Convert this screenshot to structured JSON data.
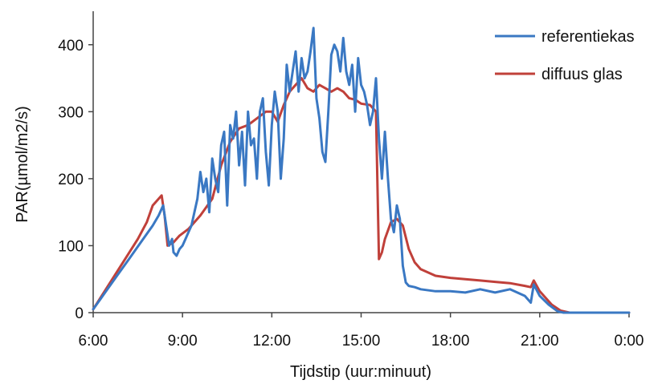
{
  "chart_data": {
    "type": "line",
    "title": "",
    "xlabel": "Tijdstip (uur:minuut)",
    "ylabel": "PAR(µmol/m2/s)",
    "x_unit": "hours",
    "xlim": [
      6,
      24
    ],
    "ylim": [
      0,
      450
    ],
    "x_ticks": [
      6,
      9,
      12,
      15,
      18,
      21,
      24
    ],
    "x_tick_labels": [
      "6:00",
      "9:00",
      "12:00",
      "15:00",
      "18:00",
      "21:00",
      "0:00"
    ],
    "y_ticks": [
      0,
      100,
      200,
      300,
      400
    ],
    "y_tick_labels": [
      "0",
      "100",
      "200",
      "300",
      "400"
    ],
    "grid": false,
    "legend_position": "top-right",
    "series": [
      {
        "name": "referentiekas",
        "color": "#3a78c3",
        "x": [
          6.0,
          6.4,
          6.8,
          7.2,
          7.6,
          8.0,
          8.2,
          8.35,
          8.45,
          8.55,
          8.65,
          8.7,
          8.8,
          8.9,
          9.0,
          9.1,
          9.2,
          9.3,
          9.4,
          9.5,
          9.6,
          9.7,
          9.8,
          9.9,
          10.0,
          10.1,
          10.2,
          10.3,
          10.4,
          10.5,
          10.6,
          10.7,
          10.8,
          10.9,
          11.0,
          11.1,
          11.2,
          11.3,
          11.4,
          11.5,
          11.6,
          11.7,
          11.8,
          11.9,
          12.0,
          12.1,
          12.2,
          12.3,
          12.4,
          12.5,
          12.6,
          12.7,
          12.8,
          12.9,
          13.0,
          13.1,
          13.2,
          13.3,
          13.4,
          13.5,
          13.6,
          13.7,
          13.8,
          13.9,
          14.0,
          14.1,
          14.2,
          14.3,
          14.4,
          14.5,
          14.6,
          14.7,
          14.8,
          14.9,
          15.0,
          15.1,
          15.2,
          15.3,
          15.4,
          15.5,
          15.6,
          15.7,
          15.8,
          15.9,
          16.0,
          16.1,
          16.2,
          16.3,
          16.4,
          16.5,
          16.6,
          16.8,
          17.0,
          17.5,
          18.0,
          18.5,
          19.0,
          19.5,
          20.0,
          20.5,
          20.7,
          20.8,
          21.0,
          21.3,
          21.6,
          21.8,
          22.0,
          23.0,
          24.0
        ],
        "values": [
          5,
          30,
          55,
          80,
          105,
          130,
          145,
          160,
          130,
          100,
          110,
          90,
          85,
          95,
          100,
          110,
          120,
          130,
          150,
          170,
          210,
          180,
          200,
          150,
          230,
          200,
          180,
          250,
          270,
          160,
          280,
          260,
          300,
          220,
          270,
          190,
          300,
          250,
          260,
          200,
          300,
          320,
          240,
          190,
          280,
          330,
          300,
          200,
          260,
          370,
          330,
          360,
          390,
          330,
          380,
          350,
          360,
          390,
          425,
          320,
          290,
          240,
          225,
          300,
          385,
          400,
          390,
          360,
          410,
          360,
          340,
          370,
          300,
          380,
          340,
          330,
          310,
          280,
          300,
          350,
          260,
          200,
          270,
          200,
          140,
          120,
          160,
          140,
          70,
          45,
          40,
          38,
          35,
          32,
          32,
          30,
          35,
          30,
          35,
          25,
          15,
          42,
          25,
          12,
          2,
          0,
          0,
          0,
          0
        ]
      },
      {
        "name": "diffuus glas",
        "color": "#c0403a",
        "x": [
          6.0,
          6.5,
          7.0,
          7.5,
          7.8,
          8.0,
          8.3,
          8.4,
          8.5,
          8.7,
          8.9,
          9.2,
          9.6,
          10.0,
          10.3,
          10.6,
          10.9,
          11.2,
          11.5,
          11.8,
          12.0,
          12.2,
          12.4,
          12.6,
          12.8,
          13.0,
          13.2,
          13.4,
          13.6,
          13.8,
          14.0,
          14.2,
          14.4,
          14.6,
          14.8,
          15.0,
          15.3,
          15.5,
          15.6,
          15.7,
          15.8,
          16.0,
          16.2,
          16.4,
          16.6,
          16.8,
          17.0,
          17.5,
          18.0,
          18.5,
          19.0,
          19.5,
          20.0,
          20.5,
          20.7,
          20.8,
          21.0,
          21.4,
          21.7,
          22.0,
          23.0,
          24.0
        ],
        "values": [
          5,
          40,
          75,
          110,
          135,
          160,
          175,
          145,
          100,
          105,
          115,
          125,
          145,
          170,
          220,
          255,
          275,
          280,
          290,
          300,
          300,
          285,
          310,
          330,
          340,
          350,
          335,
          330,
          340,
          335,
          330,
          335,
          330,
          320,
          318,
          312,
          310,
          300,
          80,
          90,
          110,
          135,
          140,
          130,
          95,
          75,
          65,
          55,
          52,
          50,
          48,
          46,
          44,
          40,
          38,
          48,
          32,
          12,
          3,
          0,
          0,
          0
        ]
      }
    ]
  }
}
